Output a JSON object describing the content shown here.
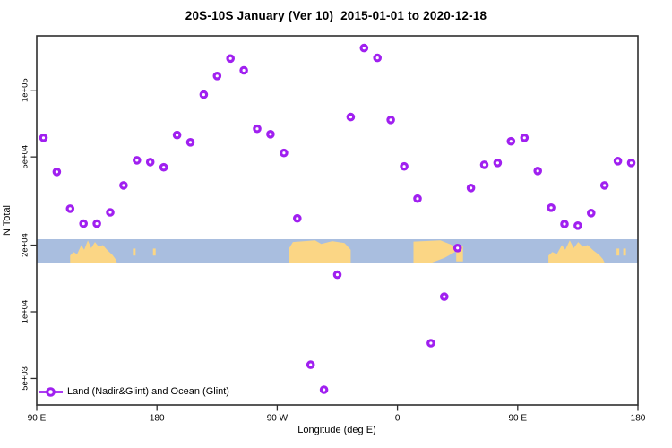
{
  "title": "20S-10S January (Ver 10)  2015-01-01 to 2020-12-18",
  "chart_data": {
    "type": "scatter",
    "title": "20S-10S January (Ver 10)  2015-01-01 to 2020-12-18",
    "xlabel": "Longitude (deg E)",
    "ylabel": "N Total",
    "y_scale": "log10",
    "grid": false,
    "point_color": "#A020F0",
    "x_axis": {
      "span_deg": 450,
      "tick_deg": [
        0,
        90,
        180,
        270,
        360,
        450
      ],
      "tick_labels": [
        "90 E",
        "180",
        "90 W",
        "0",
        "90 E",
        "180"
      ]
    },
    "y_axis": {
      "tick_values": [
        100000,
        50000,
        20000,
        10000,
        5000
      ],
      "tick_labels": [
        "1e+05",
        "5e+04",
        "2e+04",
        "1e+04",
        "5e+03"
      ]
    },
    "legend": {
      "label": "Land (Nadir&Glint) and Ocean (Glint)",
      "marker": "open-circle-on-line",
      "position": "bottom-left"
    },
    "points": [
      {
        "deg": 5,
        "n": 61000
      },
      {
        "deg": 15,
        "n": 42800
      },
      {
        "deg": 25,
        "n": 29200
      },
      {
        "deg": 35,
        "n": 25000
      },
      {
        "deg": 45,
        "n": 25000
      },
      {
        "deg": 55,
        "n": 28100
      },
      {
        "deg": 65,
        "n": 37200
      },
      {
        "deg": 75,
        "n": 48300
      },
      {
        "deg": 85,
        "n": 47400
      },
      {
        "deg": 95,
        "n": 44900
      },
      {
        "deg": 105,
        "n": 62800
      },
      {
        "deg": 115,
        "n": 58200
      },
      {
        "deg": 125,
        "n": 95500
      },
      {
        "deg": 135,
        "n": 116000
      },
      {
        "deg": 145,
        "n": 139000
      },
      {
        "deg": 155,
        "n": 123000
      },
      {
        "deg": 165,
        "n": 67000
      },
      {
        "deg": 175,
        "n": 63300
      },
      {
        "deg": 185,
        "n": 52100
      },
      {
        "deg": 195,
        "n": 26400
      },
      {
        "deg": 205,
        "n": 5770
      },
      {
        "deg": 215,
        "n": 4450
      },
      {
        "deg": 225,
        "n": 14700
      },
      {
        "deg": 235,
        "n": 75700
      },
      {
        "deg": 245,
        "n": 155000
      },
      {
        "deg": 255,
        "n": 140000
      },
      {
        "deg": 265,
        "n": 73500
      },
      {
        "deg": 275,
        "n": 45300
      },
      {
        "deg": 285,
        "n": 32400
      },
      {
        "deg": 295,
        "n": 7220
      },
      {
        "deg": 305,
        "n": 11700
      },
      {
        "deg": 315,
        "n": 19400
      },
      {
        "deg": 325,
        "n": 36200
      },
      {
        "deg": 335,
        "n": 46100
      },
      {
        "deg": 345,
        "n": 47000
      },
      {
        "deg": 355,
        "n": 58800
      },
      {
        "deg": 365,
        "n": 61000
      },
      {
        "deg": 375,
        "n": 43200
      },
      {
        "deg": 385,
        "n": 29500
      },
      {
        "deg": 395,
        "n": 24900
      },
      {
        "deg": 405,
        "n": 24500
      },
      {
        "deg": 415,
        "n": 27900
      },
      {
        "deg": 425,
        "n": 37200
      },
      {
        "deg": 435,
        "n": 47900
      },
      {
        "deg": 445,
        "n": 47000
      }
    ],
    "map_band": {
      "description": "world coastline strip for latitude band 20S-10S",
      "ocean_color": "#A9BEDF",
      "land_color": "#FBD685",
      "n_value_range": [
        16700,
        21300
      ],
      "segments": [
        {
          "name": "australia",
          "type": "jagged",
          "deg": [
            25,
            60
          ]
        },
        {
          "name": "island-1",
          "type": "island",
          "deg": [
            72,
            74
          ]
        },
        {
          "name": "island-2",
          "type": "island",
          "deg": [
            87,
            89
          ]
        },
        {
          "name": "south-america",
          "type": "block-slant",
          "deg": [
            189,
            235
          ]
        },
        {
          "name": "africa",
          "type": "block-notch",
          "deg": [
            282,
            313
          ]
        },
        {
          "name": "madagascar",
          "type": "island-tall",
          "deg": [
            314,
            319
          ]
        },
        {
          "name": "australia-2",
          "type": "jagged",
          "deg": [
            383,
            425
          ]
        },
        {
          "name": "island-3",
          "type": "island",
          "deg": [
            434,
            436
          ]
        },
        {
          "name": "island-4",
          "type": "island",
          "deg": [
            439,
            441
          ]
        }
      ]
    }
  }
}
